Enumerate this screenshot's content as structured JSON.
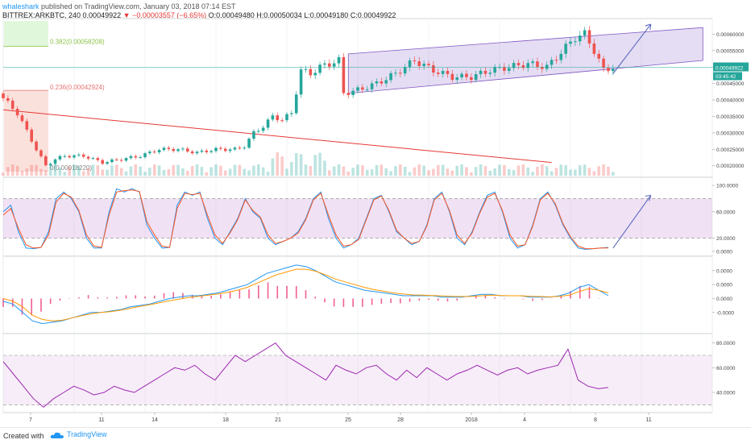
{
  "header": {
    "user": "whaleshark",
    "published": " published on TradingView.com, January 03, 2018 07:14 EST"
  },
  "symbol": {
    "name": "BITTREX:ARKBTC, 240",
    "last": "0.00049922",
    "change": "−0.00003557 (−6.65%)",
    "ohlc": "O:0.00049480 H:0.00050034 L:0.00049180 C:0.00049922"
  },
  "fib": {
    "level382": "0.382(0.00058208)",
    "level236": "0.236(0.00042924)",
    "level0": "0(0.00018220)"
  },
  "colors": {
    "up": "#26a69a",
    "down": "#ef5350",
    "channel": "#7e57c2",
    "stoch_k": "#2196f3",
    "stoch_d": "#ff5722",
    "macd": "#2196f3",
    "signal": "#ff9800",
    "rsi": "#9c27b0"
  },
  "footer": {
    "created": "Created with",
    "brand": "TradingView"
  },
  "chart_data": [
    {
      "type": "candlestick",
      "title": "BITTREX:ARKBTC, 240",
      "y_tick_labels": [
        "0.00060000",
        "0.00055000",
        "0.00050000",
        "0.00045000",
        "0.00040000",
        "0.00035000",
        "0.00030000",
        "0.00025000",
        "0.00020000"
      ],
      "last_price_label": "0.00049922",
      "countdown_label": "03:45:42",
      "x_tick_labels": [
        "7",
        "11",
        "14",
        "18",
        "21",
        "25",
        "28",
        "2018",
        "4",
        "8",
        "11"
      ],
      "ylim": [
        0.00017,
        0.00064
      ],
      "close_path": [
        [
          0,
          0.00042
        ],
        [
          4,
          0.00036
        ],
        [
          8,
          0.00025
        ],
        [
          10,
          0.0002
        ],
        [
          12,
          0.00022
        ],
        [
          14,
          0.00023
        ],
        [
          18,
          0.00023
        ],
        [
          20,
          0.00022
        ],
        [
          22,
          0.00021
        ],
        [
          26,
          0.00022
        ],
        [
          30,
          0.00023
        ],
        [
          34,
          0.00025
        ],
        [
          38,
          0.00025
        ],
        [
          42,
          0.00024
        ],
        [
          46,
          0.00025
        ],
        [
          50,
          0.00025
        ],
        [
          52,
          0.00026
        ],
        [
          54,
          0.0003
        ],
        [
          56,
          0.00032
        ],
        [
          58,
          0.00035
        ],
        [
          60,
          0.00034
        ],
        [
          62,
          0.00036
        ],
        [
          64,
          0.00049
        ],
        [
          66,
          0.00048
        ],
        [
          68,
          0.0005
        ],
        [
          70,
          0.00051
        ],
        [
          72,
          0.00052
        ],
        [
          73,
          0.00042
        ],
        [
          76,
          0.00043
        ],
        [
          80,
          0.00045
        ],
        [
          84,
          0.00048
        ],
        [
          88,
          0.00052
        ],
        [
          92,
          0.00049
        ],
        [
          96,
          0.00047
        ],
        [
          100,
          0.00047
        ],
        [
          104,
          0.00049
        ],
        [
          108,
          0.0005
        ],
        [
          112,
          0.00051
        ],
        [
          116,
          0.0005
        ],
        [
          120,
          0.00056
        ],
        [
          122,
          0.00059
        ],
        [
          124,
          0.0006
        ],
        [
          126,
          0.00055
        ],
        [
          128,
          0.00049
        ],
        [
          130,
          0.0005
        ]
      ],
      "fib_levels": [
        0.00058208,
        0.00042924,
        0.0001822
      ],
      "trendline": [
        [
          0,
          0.00037
        ],
        [
          116,
          0.00021
        ]
      ],
      "channel_upper": [
        [
          73,
          0.00054
        ],
        [
          148,
          0.00062
        ]
      ],
      "channel_lower": [
        [
          73,
          0.00042
        ],
        [
          148,
          0.00052
        ]
      ],
      "arrow": [
        [
          129,
          0.00048
        ],
        [
          137,
          0.00063
        ]
      ]
    },
    {
      "type": "line",
      "title": "Stochastic",
      "y_tick_labels": [
        "100.0000",
        "60.0000",
        "20.0000",
        "0.0000"
      ],
      "ylim": [
        -5,
        105
      ],
      "bands": [
        20,
        80
      ],
      "series": [
        {
          "values": [
            60,
            70,
            30,
            5,
            4,
            6,
            30,
            80,
            90,
            80,
            60,
            20,
            5,
            5,
            60,
            95,
            90,
            95,
            90,
            40,
            20,
            5,
            6,
            70,
            90,
            85,
            90,
            50,
            20,
            10,
            30,
            50,
            80,
            60,
            50,
            20,
            10,
            15,
            20,
            30,
            50,
            80,
            90,
            50,
            20,
            5,
            10,
            20,
            50,
            80,
            85,
            60,
            30,
            20,
            10,
            15,
            40,
            80,
            90,
            60,
            20,
            10,
            30,
            60,
            85,
            90,
            60,
            20,
            5,
            10,
            40,
            80,
            90,
            70,
            40,
            20,
            5,
            3,
            4,
            5,
            6
          ]
        },
        {
          "values": [
            55,
            65,
            35,
            10,
            5,
            6,
            25,
            75,
            88,
            82,
            62,
            25,
            8,
            6,
            55,
            90,
            92,
            93,
            91,
            45,
            25,
            8,
            6,
            65,
            88,
            86,
            88,
            55,
            25,
            12,
            28,
            48,
            78,
            62,
            52,
            25,
            12,
            15,
            20,
            28,
            48,
            78,
            88,
            55,
            25,
            8,
            10,
            18,
            48,
            78,
            84,
            62,
            32,
            20,
            12,
            15,
            38,
            78,
            88,
            62,
            25,
            12,
            28,
            58,
            82,
            88,
            62,
            25,
            8,
            10,
            38,
            78,
            88,
            72,
            42,
            22,
            8,
            4,
            4,
            5,
            5
          ]
        }
      ],
      "arrow": [
        [
          129,
          5
        ],
        [
          137,
          85
        ]
      ]
    },
    {
      "type": "line",
      "title": "MACD",
      "y_tick_labels": [
        "0.0000",
        "0.0000",
        "0.0000",
        "-0.0000"
      ],
      "ylim": [
        -1.2,
        1.4
      ],
      "series": [
        {
          "values": [
            -0.1,
            -0.2,
            -0.5,
            -0.8,
            -0.9,
            -0.85,
            -0.8,
            -0.7,
            -0.6,
            -0.5,
            -0.5,
            -0.45,
            -0.4,
            -0.3,
            -0.25,
            -0.2,
            -0.1,
            0,
            0.05,
            0.1,
            0.1,
            0.15,
            0.2,
            0.3,
            0.4,
            0.5,
            0.7,
            0.9,
            1.0,
            1.1,
            1.2,
            1.15,
            1.0,
            0.8,
            0.6,
            0.5,
            0.4,
            0.3,
            0.25,
            0.2,
            0.15,
            0.1,
            0.1,
            0.1,
            0.1,
            0.05,
            0.05,
            0.05,
            0.1,
            0.15,
            0.15,
            0.1,
            0.1,
            0.1,
            0.05,
            0.05,
            0.05,
            0.1,
            0.2,
            0.4,
            0.5,
            0.3,
            0.1
          ]
        },
        {
          "values": [
            0,
            -0.1,
            -0.3,
            -0.6,
            -0.75,
            -0.8,
            -0.78,
            -0.7,
            -0.62,
            -0.55,
            -0.5,
            -0.47,
            -0.42,
            -0.35,
            -0.28,
            -0.22,
            -0.15,
            -0.08,
            -0.02,
            0.04,
            0.08,
            0.12,
            0.16,
            0.22,
            0.3,
            0.4,
            0.55,
            0.7,
            0.85,
            0.95,
            1.05,
            1.05,
            0.98,
            0.85,
            0.7,
            0.6,
            0.5,
            0.4,
            0.32,
            0.26,
            0.2,
            0.16,
            0.13,
            0.12,
            0.11,
            0.09,
            0.08,
            0.07,
            0.08,
            0.1,
            0.12,
            0.11,
            0.1,
            0.1,
            0.08,
            0.07,
            0.06,
            0.08,
            0.12,
            0.25,
            0.35,
            0.3,
            0.2
          ]
        }
      ]
    },
    {
      "type": "line",
      "title": "RSI",
      "y_tick_labels": [
        "80.0000",
        "60.0000",
        "40.0000"
      ],
      "ylim": [
        25,
        85
      ],
      "bands": [
        30,
        70
      ],
      "series": [
        {
          "values": [
            65,
            55,
            45,
            35,
            28,
            35,
            40,
            45,
            42,
            38,
            40,
            45,
            42,
            40,
            45,
            50,
            55,
            60,
            58,
            62,
            55,
            50,
            60,
            70,
            65,
            70,
            75,
            80,
            70,
            65,
            60,
            55,
            50,
            62,
            58,
            55,
            60,
            62,
            55,
            50,
            58,
            52,
            60,
            55,
            50,
            55,
            58,
            62,
            58,
            54,
            58,
            60,
            55,
            58,
            60,
            62,
            75,
            50,
            45,
            43,
            44
          ]
        }
      ]
    }
  ]
}
